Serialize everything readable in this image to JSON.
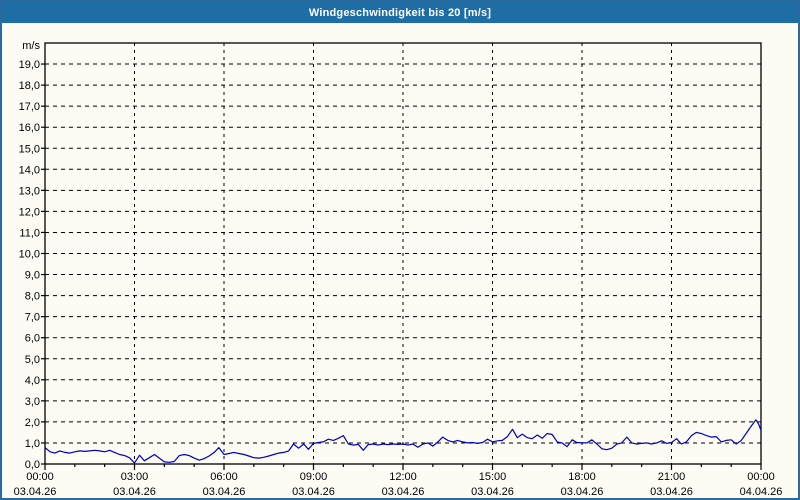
{
  "window": {
    "title": "Windgeschwindigkeit bis 20 [m/s]"
  },
  "colors": {
    "titlebar_bg": "#1e6da4",
    "window_border": "#2b6a9e",
    "background": "#fcfcf5",
    "line": "#0000bb",
    "grid": "#000000",
    "text": "#000000"
  },
  "chart_data": {
    "type": "line",
    "title": "Windgeschwindigkeit bis 20 [m/s]",
    "ylabel": "m/s",
    "ylim": [
      0,
      20
    ],
    "ytick_step": 1.0,
    "ytick_labels": [
      "0,0",
      "1,0",
      "2,0",
      "3,0",
      "4,0",
      "5,0",
      "6,0",
      "7,0",
      "8,0",
      "9,0",
      "10,0",
      "11,0",
      "12,0",
      "13,0",
      "14,0",
      "15,0",
      "16,0",
      "17,0",
      "18,0",
      "19,0"
    ],
    "xlim_hours": [
      0,
      24
    ],
    "x_minor_step_hours": 1,
    "grid": "dashed",
    "legend": "none",
    "xticks_major": [
      {
        "hour": 0,
        "time": "00:00",
        "date": "03.04.26"
      },
      {
        "hour": 3,
        "time": "03:00",
        "date": "03.04.26"
      },
      {
        "hour": 6,
        "time": "06:00",
        "date": "03.04.26"
      },
      {
        "hour": 9,
        "time": "09:00",
        "date": "03.04.26"
      },
      {
        "hour": 12,
        "time": "12:00",
        "date": "03.04.26"
      },
      {
        "hour": 15,
        "time": "15:00",
        "date": "03.04.26"
      },
      {
        "hour": 18,
        "time": "18:00",
        "date": "03.04.26"
      },
      {
        "hour": 21,
        "time": "21:00",
        "date": "03.04.26"
      },
      {
        "hour": 24,
        "time": "00:00",
        "date": "04.04.26"
      }
    ],
    "series": [
      {
        "name": "Windgeschwindigkeit",
        "color": "#0000bb",
        "points": [
          [
            0,
            0.78
          ],
          [
            0.17,
            0.58
          ],
          [
            0.33,
            0.52
          ],
          [
            0.5,
            0.62
          ],
          [
            0.67,
            0.55
          ],
          [
            0.83,
            0.52
          ],
          [
            1,
            0.58
          ],
          [
            1.17,
            0.62
          ],
          [
            1.33,
            0.6
          ],
          [
            1.5,
            0.62
          ],
          [
            1.67,
            0.65
          ],
          [
            1.83,
            0.62
          ],
          [
            2,
            0.58
          ],
          [
            2.17,
            0.65
          ],
          [
            2.33,
            0.55
          ],
          [
            2.5,
            0.45
          ],
          [
            2.67,
            0.4
          ],
          [
            2.83,
            0.3
          ],
          [
            3,
            0.05
          ],
          [
            3.17,
            0.42
          ],
          [
            3.33,
            0.15
          ],
          [
            3.5,
            0.3
          ],
          [
            3.67,
            0.45
          ],
          [
            3.83,
            0.28
          ],
          [
            4,
            0.1
          ],
          [
            4.17,
            0.08
          ],
          [
            4.33,
            0.12
          ],
          [
            4.5,
            0.4
          ],
          [
            4.67,
            0.45
          ],
          [
            4.83,
            0.4
          ],
          [
            5,
            0.28
          ],
          [
            5.17,
            0.18
          ],
          [
            5.33,
            0.25
          ],
          [
            5.5,
            0.38
          ],
          [
            5.67,
            0.55
          ],
          [
            5.83,
            0.78
          ],
          [
            6,
            0.45
          ],
          [
            6.17,
            0.5
          ],
          [
            6.33,
            0.55
          ],
          [
            6.5,
            0.5
          ],
          [
            6.67,
            0.45
          ],
          [
            6.83,
            0.38
          ],
          [
            7,
            0.3
          ],
          [
            7.17,
            0.28
          ],
          [
            7.33,
            0.32
          ],
          [
            7.5,
            0.38
          ],
          [
            7.67,
            0.45
          ],
          [
            7.83,
            0.52
          ],
          [
            8,
            0.55
          ],
          [
            8.17,
            0.62
          ],
          [
            8.33,
            0.95
          ],
          [
            8.5,
            0.75
          ],
          [
            8.67,
            0.95
          ],
          [
            8.83,
            0.7
          ],
          [
            9,
            0.98
          ],
          [
            9.17,
            1.02
          ],
          [
            9.33,
            1.05
          ],
          [
            9.5,
            1.18
          ],
          [
            9.67,
            1.12
          ],
          [
            9.83,
            1.22
          ],
          [
            10,
            1.35
          ],
          [
            10.17,
            0.95
          ],
          [
            10.33,
            0.9
          ],
          [
            10.5,
            0.93
          ],
          [
            10.67,
            0.65
          ],
          [
            10.83,
            0.92
          ],
          [
            11,
            0.95
          ],
          [
            11.17,
            0.9
          ],
          [
            11.33,
            0.95
          ],
          [
            11.5,
            0.92
          ],
          [
            11.67,
            0.95
          ],
          [
            11.83,
            0.93
          ],
          [
            12,
            0.95
          ],
          [
            12.17,
            0.9
          ],
          [
            12.33,
            0.95
          ],
          [
            12.5,
            0.8
          ],
          [
            12.67,
            0.95
          ],
          [
            12.83,
            1
          ],
          [
            13,
            0.85
          ],
          [
            13.17,
            1.05
          ],
          [
            13.33,
            1.28
          ],
          [
            13.5,
            1.12
          ],
          [
            13.67,
            1.05
          ],
          [
            13.83,
            1.12
          ],
          [
            14,
            1.05
          ],
          [
            14.17,
            1
          ],
          [
            14.33,
            1.02
          ],
          [
            14.5,
            0.98
          ],
          [
            14.67,
            1.02
          ],
          [
            14.83,
            1.18
          ],
          [
            15,
            1.05
          ],
          [
            15.17,
            1.1
          ],
          [
            15.33,
            1.12
          ],
          [
            15.5,
            1.3
          ],
          [
            15.67,
            1.65
          ],
          [
            15.83,
            1.25
          ],
          [
            16,
            1.42
          ],
          [
            16.17,
            1.25
          ],
          [
            16.33,
            1.2
          ],
          [
            16.5,
            1.38
          ],
          [
            16.67,
            1.22
          ],
          [
            16.83,
            1.45
          ],
          [
            17,
            1.4
          ],
          [
            17.17,
            1.05
          ],
          [
            17.33,
            1
          ],
          [
            17.5,
            0.82
          ],
          [
            17.67,
            1.15
          ],
          [
            17.83,
            1.02
          ],
          [
            18,
            1
          ],
          [
            18.17,
            1
          ],
          [
            18.33,
            1.15
          ],
          [
            18.5,
            0.95
          ],
          [
            18.67,
            0.72
          ],
          [
            18.83,
            0.68
          ],
          [
            19,
            0.75
          ],
          [
            19.17,
            0.95
          ],
          [
            19.33,
            1
          ],
          [
            19.5,
            1.28
          ],
          [
            19.67,
            1
          ],
          [
            19.83,
            0.95
          ],
          [
            20,
            0.98
          ],
          [
            20.17,
            1
          ],
          [
            20.33,
            0.95
          ],
          [
            20.5,
            1
          ],
          [
            20.67,
            1.1
          ],
          [
            20.83,
            0.98
          ],
          [
            21,
            1.02
          ],
          [
            21.17,
            1.2
          ],
          [
            21.33,
            0.95
          ],
          [
            21.5,
            1.05
          ],
          [
            21.67,
            1.35
          ],
          [
            21.83,
            1.5
          ],
          [
            22,
            1.45
          ],
          [
            22.17,
            1.35
          ],
          [
            22.33,
            1.28
          ],
          [
            22.5,
            1.3
          ],
          [
            22.67,
            1.05
          ],
          [
            22.83,
            1.12
          ],
          [
            23,
            1.15
          ],
          [
            23.17,
            0.95
          ],
          [
            23.33,
            1.1
          ],
          [
            23.5,
            1.45
          ],
          [
            23.67,
            1.8
          ],
          [
            23.83,
            2.1
          ],
          [
            23.92,
            1.9
          ],
          [
            24,
            1.6
          ]
        ]
      }
    ]
  }
}
